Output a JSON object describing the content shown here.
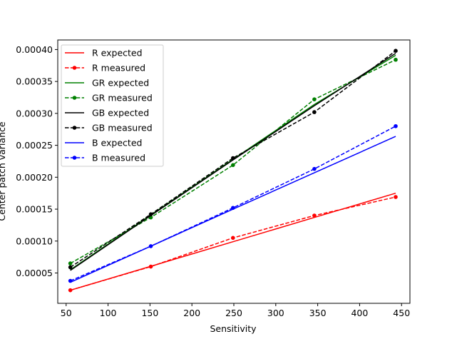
{
  "chart_data": {
    "type": "line",
    "title": "",
    "xlabel": "Sensitivity",
    "ylabel": "Center patch variance",
    "xlim": [
      40,
      460
    ],
    "ylim": [
      2.5e-06,
      0.000415
    ],
    "xticks": [
      50,
      100,
      150,
      200,
      250,
      300,
      350,
      400,
      450
    ],
    "yticks": [
      "0.00005",
      "0.00010",
      "0.00015",
      "0.00020",
      "0.00025",
      "0.00030",
      "0.00035",
      "0.00040"
    ],
    "grid": false,
    "legend_position": "top-left",
    "x": [
      55,
      151,
      249,
      346,
      443
    ],
    "series": [
      {
        "name": "R expected",
        "color": "#ff0000",
        "style": "solid",
        "values": [
          2.3e-05,
          6.05e-05,
          9.9e-05,
          0.000137,
          0.000175
        ]
      },
      {
        "name": "R measured",
        "color": "#ff0000",
        "style": "dashed",
        "values": [
          2.3e-05,
          6e-05,
          0.000105,
          0.00014,
          0.000169
        ]
      },
      {
        "name": "GR expected",
        "color": "#008000",
        "style": "solid",
        "values": [
          5.5e-05,
          0.000141,
          0.000228,
          0.000314,
          0.000391
        ]
      },
      {
        "name": "GR measured",
        "color": "#008000",
        "style": "dashed",
        "values": [
          6.5e-05,
          0.000137,
          0.000219,
          0.000322,
          0.000384
        ]
      },
      {
        "name": "GB expected",
        "color": "#000000",
        "style": "solid",
        "values": [
          5.4e-05,
          0.00014,
          0.000227,
          0.000312,
          0.000394
        ]
      },
      {
        "name": "GB measured",
        "color": "#000000",
        "style": "dashed",
        "values": [
          5.9e-05,
          0.000142,
          0.00023,
          0.000302,
          0.000398
        ]
      },
      {
        "name": "B expected",
        "color": "#0000ff",
        "style": "solid",
        "values": [
          3.54e-05,
          9.2e-05,
          0.00015,
          0.000207,
          0.000264
        ]
      },
      {
        "name": "B measured",
        "color": "#0000ff",
        "style": "dashed",
        "values": [
          3.77e-05,
          9.2e-05,
          0.000152,
          0.000213,
          0.00028
        ]
      }
    ]
  }
}
